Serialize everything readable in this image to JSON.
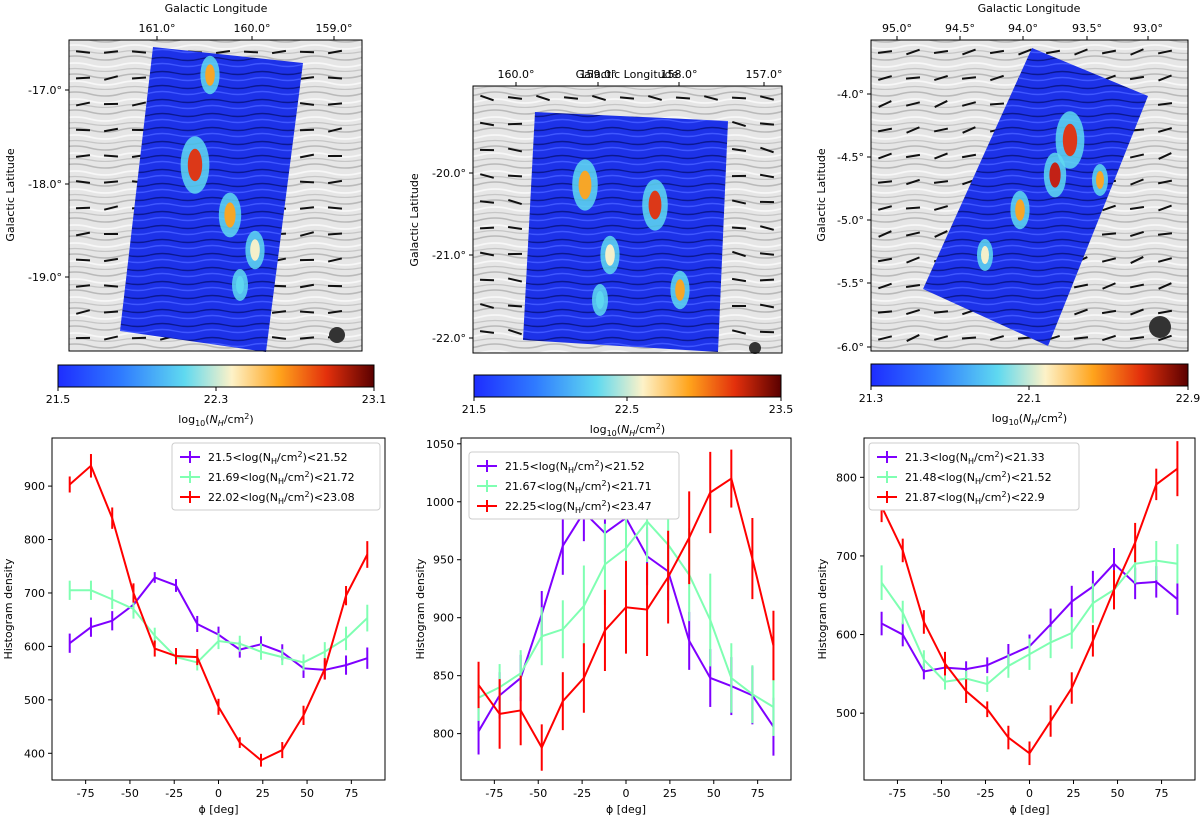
{
  "colors": {
    "low": "#ffffff",
    "map_low": "#1e2dff",
    "map_mid": "#63d8ef",
    "map_midlight": "#fdf2c8",
    "map_hi": "#ff9a00",
    "map_top": "#c8180a",
    "map_max": "#5a0000",
    "series_low": "#7f00ff",
    "series_mid": "#7fffb2",
    "series_high": "#ff0000",
    "lic_bg": "#d8d8d8",
    "frame": "#000000"
  },
  "chart_data": [
    {
      "type": "image",
      "name": "map-1",
      "xlabel": "Galactic Longitude",
      "ylabel": "Galactic Latitude",
      "x_ticks": [
        "161.0°",
        "160.0°",
        "159.0°"
      ],
      "y_ticks": [
        "-17.0°",
        "-18.0°",
        "-19.0°"
      ],
      "colorbar": {
        "label": "log₁₀(N_H/cm²)",
        "ticks": [
          "21.5",
          "22.3",
          "23.1"
        ],
        "range": [
          21.5,
          23.1
        ]
      }
    },
    {
      "type": "image",
      "name": "map-2",
      "xlabel": "Galactic Longitude",
      "ylabel": "Galactic Latitude",
      "x_ticks": [
        "160.0°",
        "159.0°",
        "158.0°",
        "157.0°"
      ],
      "y_ticks": [
        "-20.0°",
        "-21.0°",
        "-22.0°"
      ],
      "colorbar": {
        "label": "log₁₀(N_H/cm²)",
        "ticks": [
          "21.5",
          "22.5",
          "23.5"
        ],
        "range": [
          21.5,
          23.5
        ]
      }
    },
    {
      "type": "image",
      "name": "map-3",
      "xlabel": "Galactic Longitude",
      "ylabel": "Galactic Latitude",
      "x_ticks": [
        "95.0°",
        "94.5°",
        "94.0°",
        "93.5°",
        "93.0°"
      ],
      "y_ticks": [
        "-4.0°",
        "-4.5°",
        "-5.0°",
        "-5.5°",
        "-6.0°"
      ],
      "colorbar": {
        "label": "log₁₀(N_H/cm²)",
        "ticks": [
          "21.3",
          "22.1",
          "22.9"
        ],
        "range": [
          21.3,
          22.9
        ]
      }
    },
    {
      "type": "line",
      "name": "histogram-1",
      "xlabel": "ϕ [deg]",
      "ylabel": "Histogram density",
      "xlim": [
        -94,
        94
      ],
      "ylim": [
        350,
        990
      ],
      "xticks": [
        -75,
        -50,
        -25,
        0,
        25,
        50,
        75
      ],
      "yticks": [
        400,
        500,
        600,
        700,
        800,
        900
      ],
      "x": [
        -84,
        -72,
        -60,
        -48,
        -36,
        -24,
        -12,
        0,
        12,
        24,
        36,
        48,
        60,
        72,
        84
      ],
      "series": [
        {
          "name": "21.5<log(N_H/cm²)<21.52",
          "color": "#7f00ff",
          "values": [
            606,
            636,
            648,
            678,
            729,
            714,
            642,
            622,
            594,
            604,
            589,
            559,
            556,
            565,
            578
          ],
          "errors": [
            18,
            18,
            18,
            18,
            10,
            12,
            15,
            15,
            15,
            15,
            15,
            18,
            18,
            18,
            20
          ]
        },
        {
          "name": "21.69<log(N_H/cm²)<21.72",
          "color": "#7fffb2",
          "values": [
            705,
            705,
            688,
            670,
            620,
            580,
            570,
            610,
            605,
            590,
            580,
            570,
            590,
            615,
            653
          ],
          "errors": [
            18,
            18,
            18,
            18,
            15,
            15,
            15,
            15,
            15,
            15,
            15,
            15,
            18,
            22,
            25
          ]
        },
        {
          "name": "22.02<log(N_H/cm²)<23.08",
          "color": "#ff0000",
          "values": [
            903,
            938,
            840,
            700,
            596,
            582,
            580,
            487,
            420,
            387,
            406,
            471,
            558,
            695,
            772
          ],
          "errors": [
            15,
            22,
            20,
            18,
            15,
            15,
            15,
            15,
            10,
            12,
            15,
            18,
            20,
            18,
            25
          ]
        }
      ]
    },
    {
      "type": "line",
      "name": "histogram-2",
      "xlabel": "ϕ [deg]",
      "ylabel": "Histogram density",
      "xlim": [
        -94,
        94
      ],
      "ylim": [
        760,
        1055
      ],
      "xticks": [
        -75,
        -50,
        -25,
        0,
        25,
        50,
        75
      ],
      "yticks": [
        800,
        850,
        900,
        950,
        1000,
        1050
      ],
      "x": [
        -84,
        -72,
        -60,
        -48,
        -36,
        -24,
        -12,
        0,
        12,
        24,
        36,
        48,
        60,
        72,
        84
      ],
      "series": [
        {
          "name": "21.5<log(N_H/cm²)<21.52",
          "color": "#7f00ff",
          "values": [
            802,
            833,
            848,
            903,
            962,
            991,
            973,
            986,
            953,
            940,
            880,
            848,
            841,
            833,
            806
          ],
          "errors": [
            20,
            20,
            20,
            20,
            25,
            25,
            25,
            25,
            25,
            25,
            25,
            25,
            25,
            25,
            25
          ]
        },
        {
          "name": "21.67<log(N_H/cm²)<21.71",
          "color": "#7fffb2",
          "values": [
            831,
            840,
            852,
            884,
            890,
            910,
            946,
            960,
            983,
            963,
            937,
            898,
            848,
            834,
            823
          ],
          "errors": [
            20,
            20,
            20,
            25,
            25,
            35,
            35,
            35,
            35,
            40,
            40,
            40,
            30,
            25,
            25
          ]
        },
        {
          "name": "22.25<log(N_H/cm²)<23.47",
          "color": "#ff0000",
          "values": [
            842,
            817,
            820,
            788,
            828,
            848,
            889,
            909,
            907,
            935,
            969,
            1008,
            1020,
            951,
            876
          ],
          "errors": [
            20,
            30,
            30,
            20,
            25,
            30,
            35,
            40,
            40,
            40,
            40,
            35,
            25,
            35,
            30
          ]
        }
      ]
    },
    {
      "type": "line",
      "name": "histogram-3",
      "xlabel": "ϕ [deg]",
      "ylabel": "Histogram density",
      "xlim": [
        -94,
        94
      ],
      "ylim": [
        415,
        850
      ],
      "xticks": [
        -75,
        -50,
        -25,
        0,
        25,
        50,
        75
      ],
      "yticks": [
        500,
        600,
        700,
        800
      ],
      "x": [
        -84,
        -72,
        -60,
        -48,
        -36,
        -24,
        -12,
        0,
        12,
        24,
        36,
        48,
        60,
        72,
        84
      ],
      "series": [
        {
          "name": "21.3<log(N_H/cm²)<21.33",
          "color": "#7f00ff",
          "values": [
            614,
            600,
            553,
            558,
            556,
            561,
            573,
            585,
            613,
            642,
            661,
            690,
            665,
            667,
            645
          ],
          "errors": [
            15,
            15,
            10,
            10,
            10,
            10,
            15,
            15,
            20,
            20,
            20,
            20,
            20,
            20,
            20
          ]
        },
        {
          "name": "21.48<log(N_H/cm²)<21.52",
          "color": "#7fffb2",
          "values": [
            666,
            628,
            568,
            540,
            544,
            537,
            560,
            575,
            590,
            602,
            640,
            657,
            690,
            694,
            690
          ],
          "errors": [
            22,
            15,
            12,
            10,
            10,
            10,
            15,
            20,
            20,
            20,
            25,
            25,
            25,
            25,
            25
          ]
        },
        {
          "name": "21.87<log(N_H/cm²)<22.9",
          "color": "#ff0000",
          "values": [
            763,
            707,
            616,
            563,
            528,
            505,
            469,
            449,
            490,
            532,
            592,
            657,
            717,
            791,
            811
          ],
          "errors": [
            20,
            15,
            15,
            15,
            15,
            10,
            15,
            15,
            20,
            20,
            20,
            25,
            25,
            20,
            35
          ]
        }
      ]
    }
  ]
}
